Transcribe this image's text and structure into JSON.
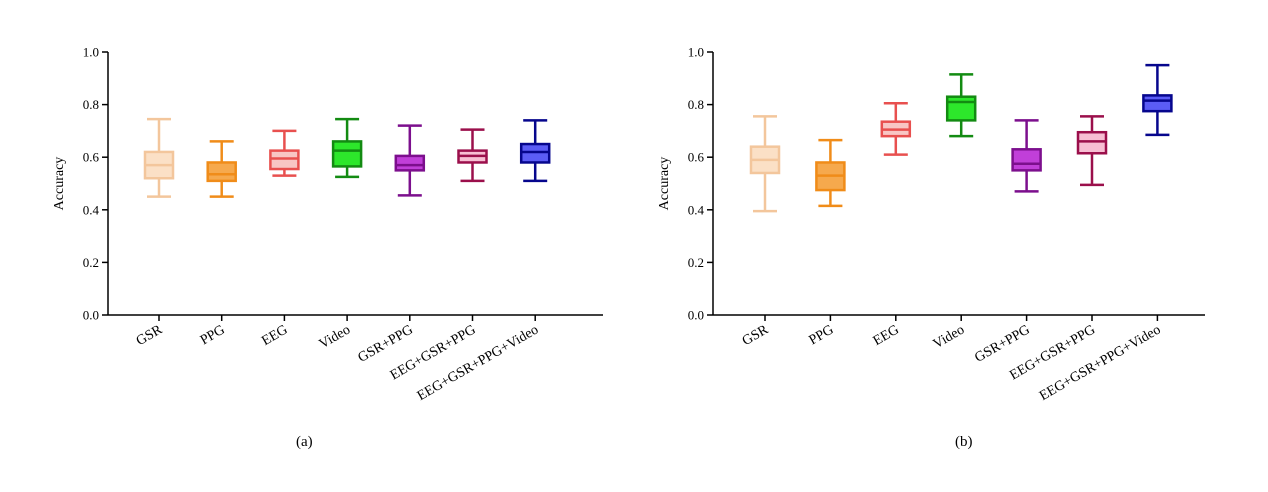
{
  "chart_data": [
    {
      "type": "boxplot",
      "panel_label": "(a)",
      "ylabel": "Accuracy",
      "ylim": [
        0,
        1.0
      ],
      "yticks": [
        "0.0",
        "0.2",
        "0.4",
        "0.6",
        "0.8",
        "1.0"
      ],
      "categories": [
        "GSR",
        "PPG",
        "EEG",
        "Video",
        "GSR+PPG",
        "EEG+GSR+PPG",
        "EEG+GSR+PPG+Video"
      ],
      "boxes": [
        {
          "min": 0.45,
          "q1": 0.52,
          "median": 0.57,
          "q3": 0.62,
          "max": 0.745
        },
        {
          "min": 0.45,
          "q1": 0.51,
          "median": 0.535,
          "q3": 0.58,
          "max": 0.66
        },
        {
          "min": 0.53,
          "q1": 0.555,
          "median": 0.595,
          "q3": 0.625,
          "max": 0.7
        },
        {
          "min": 0.525,
          "q1": 0.565,
          "median": 0.625,
          "q3": 0.66,
          "max": 0.745
        },
        {
          "min": 0.455,
          "q1": 0.55,
          "median": 0.57,
          "q3": 0.605,
          "max": 0.72
        },
        {
          "min": 0.51,
          "q1": 0.58,
          "median": 0.605,
          "q3": 0.625,
          "max": 0.705
        },
        {
          "min": 0.51,
          "q1": 0.58,
          "median": 0.62,
          "q3": 0.65,
          "max": 0.74
        }
      ]
    },
    {
      "type": "boxplot",
      "panel_label": "(b)",
      "ylabel": "Accuracy",
      "ylim": [
        0,
        1.0
      ],
      "yticks": [
        "0.0",
        "0.2",
        "0.4",
        "0.6",
        "0.8",
        "1.0"
      ],
      "categories": [
        "GSR",
        "PPG",
        "EEG",
        "Video",
        "GSR+PPG",
        "EEG+GSR+PPG",
        "EEG+GSR+PPG+Video"
      ],
      "boxes": [
        {
          "min": 0.395,
          "q1": 0.54,
          "median": 0.59,
          "q3": 0.64,
          "max": 0.755
        },
        {
          "min": 0.415,
          "q1": 0.475,
          "median": 0.53,
          "q3": 0.58,
          "max": 0.665
        },
        {
          "min": 0.61,
          "q1": 0.68,
          "median": 0.705,
          "q3": 0.735,
          "max": 0.805
        },
        {
          "min": 0.68,
          "q1": 0.74,
          "median": 0.81,
          "q3": 0.83,
          "max": 0.915
        },
        {
          "min": 0.47,
          "q1": 0.55,
          "median": 0.575,
          "q3": 0.63,
          "max": 0.74
        },
        {
          "min": 0.495,
          "q1": 0.615,
          "median": 0.66,
          "q3": 0.695,
          "max": 0.755
        },
        {
          "min": 0.685,
          "q1": 0.775,
          "median": 0.815,
          "q3": 0.835,
          "max": 0.95
        }
      ]
    }
  ],
  "styles": [
    {
      "stroke": "#f3c69c",
      "fill": "#fbe0c6"
    },
    {
      "stroke": "#f08c19",
      "fill": "#f6a94d"
    },
    {
      "stroke": "#e8504f",
      "fill": "#f8c6c4"
    },
    {
      "stroke": "#138b12",
      "fill": "#2de72b"
    },
    {
      "stroke": "#7c0f8d",
      "fill": "#c13fd9"
    },
    {
      "stroke": "#9b0f4b",
      "fill": "#f7bed3"
    },
    {
      "stroke": "#06068d",
      "fill": "#5b5cf5"
    }
  ]
}
